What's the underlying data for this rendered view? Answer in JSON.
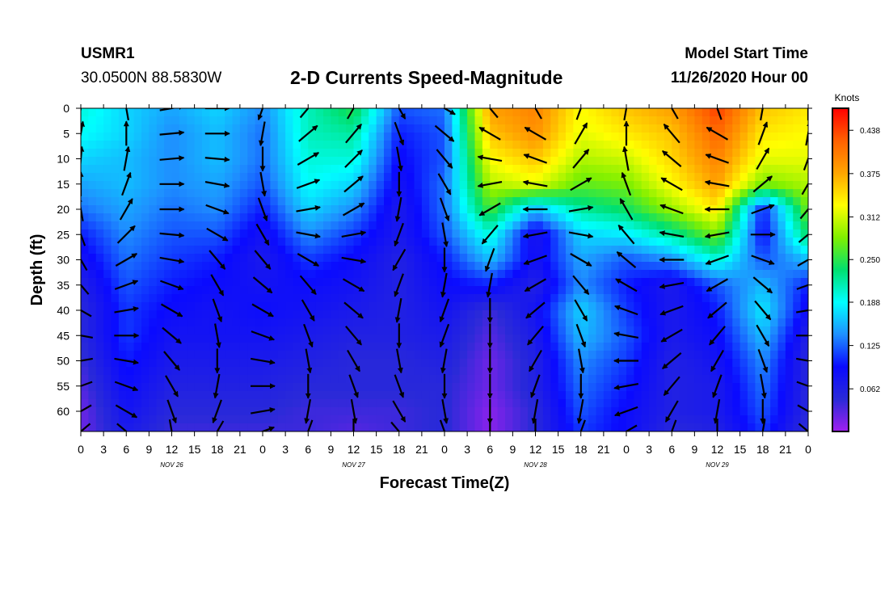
{
  "header": {
    "station": "USMR1",
    "coords": "30.0500N 88.5830W",
    "title": "2-D Currents Speed-Magnitude",
    "model_start_label": "Model Start Time",
    "model_start_value": "11/26/2020 Hour 00"
  },
  "chart_data": {
    "type": "heatmap",
    "title": "2-D Currents Speed-Magnitude",
    "xlabel": "Forecast Time(Z)",
    "ylabel": "Depth (ft)",
    "x_ticks": [
      "0",
      "3",
      "6",
      "9",
      "12",
      "15",
      "18",
      "21",
      "0",
      "3",
      "6",
      "9",
      "12",
      "15",
      "18",
      "21",
      "0",
      "3",
      "6",
      "9",
      "12",
      "15",
      "18",
      "21",
      "0",
      "3",
      "6",
      "9",
      "12",
      "15",
      "18",
      "21",
      "0"
    ],
    "x_range_hours": [
      0,
      96
    ],
    "date_labels": [
      "NOV 26",
      "NOV 27",
      "NOV 28",
      "NOV 29"
    ],
    "y_ticks": [
      "0",
      "5",
      "10",
      "15",
      "20",
      "25",
      "30",
      "35",
      "40",
      "45",
      "50",
      "55",
      "60"
    ],
    "ylim": [
      0,
      64
    ],
    "y_inverted": true,
    "colorbar": {
      "unit": "Knots",
      "labels": [
        "0.438",
        "0.375",
        "0.312",
        "0.250",
        "0.188",
        "0.125",
        "0.062"
      ],
      "range": [
        0,
        0.47
      ],
      "colors": [
        "#a020f0",
        "#2a2ad8",
        "#0a0aff",
        "#1e90ff",
        "#00ffff",
        "#00e070",
        "#80f000",
        "#ffff00",
        "#ffa500",
        "#ff6000",
        "#ff0000"
      ]
    },
    "depths_ft": [
      0,
      5,
      10,
      15,
      20,
      25,
      30,
      35,
      40,
      45,
      50,
      55,
      60,
      64
    ],
    "times_hours": [
      0,
      6,
      12,
      18,
      24,
      30,
      36,
      42,
      48,
      54,
      60,
      66,
      72,
      78,
      84,
      90,
      96
    ],
    "speed_knots": [
      [
        0.2,
        0.17,
        0.15,
        0.17,
        0.14,
        0.21,
        0.25,
        0.12,
        0.13,
        0.38,
        0.4,
        0.33,
        0.36,
        0.38,
        0.44,
        0.36,
        0.34
      ],
      [
        0.19,
        0.17,
        0.14,
        0.16,
        0.13,
        0.21,
        0.22,
        0.1,
        0.12,
        0.36,
        0.39,
        0.32,
        0.34,
        0.36,
        0.42,
        0.34,
        0.33
      ],
      [
        0.17,
        0.16,
        0.14,
        0.16,
        0.13,
        0.2,
        0.2,
        0.09,
        0.12,
        0.33,
        0.36,
        0.3,
        0.31,
        0.35,
        0.4,
        0.32,
        0.32
      ],
      [
        0.15,
        0.16,
        0.14,
        0.15,
        0.12,
        0.19,
        0.17,
        0.08,
        0.13,
        0.3,
        0.32,
        0.27,
        0.28,
        0.33,
        0.38,
        0.28,
        0.3
      ],
      [
        0.13,
        0.15,
        0.13,
        0.14,
        0.1,
        0.17,
        0.14,
        0.07,
        0.13,
        0.26,
        0.16,
        0.22,
        0.24,
        0.29,
        0.34,
        0.1,
        0.28
      ],
      [
        0.1,
        0.14,
        0.12,
        0.12,
        0.08,
        0.14,
        0.11,
        0.07,
        0.12,
        0.2,
        0.07,
        0.17,
        0.18,
        0.22,
        0.28,
        0.09,
        0.24
      ],
      [
        0.08,
        0.13,
        0.11,
        0.1,
        0.07,
        0.11,
        0.09,
        0.06,
        0.1,
        0.16,
        0.08,
        0.15,
        0.12,
        0.14,
        0.2,
        0.12,
        0.16
      ],
      [
        0.06,
        0.12,
        0.1,
        0.09,
        0.08,
        0.09,
        0.08,
        0.06,
        0.09,
        0.1,
        0.06,
        0.14,
        0.1,
        0.07,
        0.12,
        0.16,
        0.1
      ],
      [
        0.05,
        0.11,
        0.09,
        0.08,
        0.09,
        0.08,
        0.07,
        0.06,
        0.08,
        0.04,
        0.08,
        0.17,
        0.11,
        0.07,
        0.1,
        0.18,
        0.08
      ],
      [
        0.05,
        0.11,
        0.08,
        0.08,
        0.08,
        0.07,
        0.06,
        0.06,
        0.07,
        0.03,
        0.07,
        0.16,
        0.12,
        0.07,
        0.09,
        0.16,
        0.06
      ],
      [
        0.04,
        0.1,
        0.07,
        0.07,
        0.07,
        0.06,
        0.05,
        0.05,
        0.06,
        0.02,
        0.06,
        0.14,
        0.11,
        0.06,
        0.08,
        0.14,
        0.05
      ],
      [
        0.03,
        0.09,
        0.06,
        0.06,
        0.06,
        0.05,
        0.05,
        0.05,
        0.05,
        0.02,
        0.06,
        0.13,
        0.1,
        0.06,
        0.07,
        0.13,
        0.05
      ],
      [
        0.02,
        0.08,
        0.05,
        0.05,
        0.05,
        0.04,
        0.04,
        0.04,
        0.05,
        0.01,
        0.05,
        0.12,
        0.09,
        0.06,
        0.07,
        0.12,
        0.05
      ],
      [
        0.02,
        0.07,
        0.04,
        0.04,
        0.04,
        0.04,
        0.03,
        0.04,
        0.05,
        0.01,
        0.05,
        0.11,
        0.09,
        0.05,
        0.06,
        0.11,
        0.04
      ]
    ],
    "direction_deg": [
      [
        10,
        350,
        80,
        90,
        200,
        40,
        30,
        150,
        120,
        320,
        330,
        20,
        10,
        330,
        340,
        10,
        0
      ],
      [
        10,
        0,
        85,
        90,
        190,
        50,
        40,
        160,
        130,
        300,
        300,
        30,
        0,
        320,
        300,
        20,
        10
      ],
      [
        5,
        10,
        85,
        95,
        180,
        60,
        45,
        170,
        140,
        280,
        290,
        40,
        350,
        310,
        290,
        30,
        20
      ],
      [
        0,
        20,
        90,
        100,
        170,
        70,
        50,
        180,
        150,
        260,
        280,
        60,
        340,
        300,
        280,
        50,
        30
      ],
      [
        350,
        30,
        90,
        110,
        160,
        80,
        60,
        190,
        160,
        240,
        270,
        80,
        330,
        290,
        270,
        70,
        40
      ],
      [
        340,
        45,
        95,
        120,
        150,
        100,
        80,
        200,
        170,
        220,
        260,
        100,
        320,
        280,
        260,
        90,
        50
      ],
      [
        330,
        60,
        100,
        140,
        140,
        120,
        100,
        210,
        180,
        200,
        250,
        120,
        310,
        270,
        250,
        110,
        60
      ],
      [
        320,
        70,
        110,
        150,
        130,
        140,
        120,
        200,
        190,
        190,
        240,
        140,
        300,
        260,
        240,
        130,
        70
      ],
      [
        300,
        80,
        120,
        160,
        120,
        150,
        130,
        190,
        200,
        180,
        230,
        150,
        290,
        250,
        230,
        140,
        80
      ],
      [
        280,
        90,
        130,
        170,
        110,
        160,
        140,
        180,
        200,
        180,
        220,
        160,
        280,
        240,
        220,
        150,
        90
      ],
      [
        260,
        100,
        140,
        180,
        100,
        170,
        150,
        170,
        190,
        180,
        210,
        170,
        270,
        230,
        210,
        160,
        100
      ],
      [
        250,
        110,
        150,
        190,
        90,
        180,
        160,
        160,
        180,
        180,
        200,
        180,
        260,
        220,
        200,
        170,
        110
      ],
      [
        240,
        120,
        160,
        200,
        80,
        190,
        170,
        150,
        170,
        180,
        190,
        190,
        250,
        210,
        190,
        180,
        120
      ],
      [
        230,
        130,
        170,
        210,
        70,
        200,
        180,
        140,
        160,
        180,
        180,
        200,
        240,
        200,
        180,
        190,
        130
      ]
    ]
  }
}
